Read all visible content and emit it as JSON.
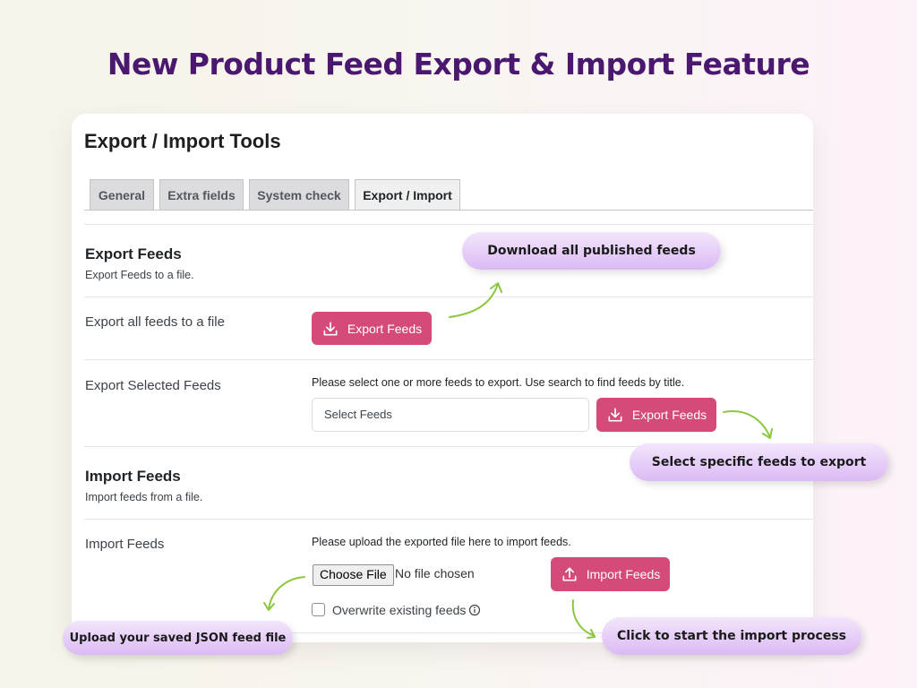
{
  "headline": "New Product Feed Export & Import Feature",
  "page_title": "Export / Import Tools",
  "tabs": [
    {
      "label": "General"
    },
    {
      "label": "Extra fields"
    },
    {
      "label": "System check"
    },
    {
      "label": "Export / Import",
      "active": true
    }
  ],
  "export": {
    "heading": "Export Feeds",
    "description": "Export Feeds to a file.",
    "all_label": "Export all feeds to a file",
    "all_button": "Export Feeds",
    "selected_label": "Export Selected Feeds",
    "selected_help": "Please select one or more feeds to export. Use search to find feeds by title.",
    "select_placeholder": "Select Feeds",
    "selected_button": "Export Feeds"
  },
  "import": {
    "heading": "Import Feeds",
    "description": "Import feeds from a file.",
    "label": "Import Feeds",
    "help": "Please upload the exported file here to import feeds.",
    "choose_file": "Choose File",
    "no_file": "No file chosen",
    "button": "Import Feeds",
    "overwrite_label": "Overwrite existing feeds",
    "overwrite_checked": false
  },
  "callouts": {
    "download_all": "Download all published feeds",
    "select_specific": "Select specific feeds to export",
    "upload_json": "Upload your saved JSON feed file",
    "start_import": "Click to start the import process"
  },
  "colors": {
    "headline": "#4b1870",
    "button": "#d44a78",
    "arrow": "#8dc63f",
    "callout": "#dbbaf4"
  }
}
